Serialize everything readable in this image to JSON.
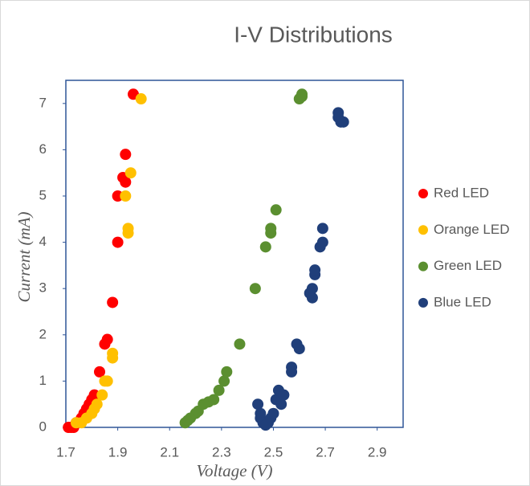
{
  "chart_data": {
    "type": "scatter",
    "title": "I-V Distributions",
    "xlabel": "Voltage (V)",
    "ylabel": "Current (mA)",
    "xlim": [
      1.7,
      3.0
    ],
    "xticks": [
      1.7,
      1.9,
      2.1,
      2.3,
      2.5,
      2.7,
      2.9
    ],
    "ylim": [
      0,
      7.5
    ],
    "yticks": [
      0,
      1,
      2,
      3,
      4,
      5,
      6,
      7
    ],
    "legend": "right",
    "series": [
      {
        "name": "Red LED",
        "color": "#ff0000",
        "x": [
          1.71,
          1.72,
          1.73,
          1.74,
          1.76,
          1.77,
          1.78,
          1.79,
          1.8,
          1.81,
          1.83,
          1.85,
          1.86,
          1.88,
          1.9,
          1.9,
          1.92,
          1.93,
          1.93,
          1.96
        ],
        "values": [
          0,
          0,
          0,
          0.1,
          0.2,
          0.3,
          0.4,
          0.5,
          0.6,
          0.7,
          1.2,
          1.8,
          1.9,
          2.7,
          4.0,
          5.0,
          5.4,
          5.3,
          5.9,
          7.2
        ]
      },
      {
        "name": "Orange LED",
        "color": "#ffc000",
        "x": [
          1.74,
          1.76,
          1.78,
          1.8,
          1.81,
          1.82,
          1.84,
          1.85,
          1.86,
          1.88,
          1.88,
          1.94,
          1.94,
          1.93,
          1.95,
          1.99
        ],
        "values": [
          0.1,
          0.1,
          0.2,
          0.3,
          0.4,
          0.5,
          0.7,
          1.0,
          1.0,
          1.5,
          1.6,
          4.2,
          4.3,
          5.0,
          5.5,
          7.1
        ]
      },
      {
        "name": "Green LED",
        "color": "#5b8f30",
        "x": [
          2.16,
          2.17,
          2.18,
          2.2,
          2.21,
          2.23,
          2.25,
          2.27,
          2.29,
          2.31,
          2.32,
          2.37,
          2.43,
          2.47,
          2.49,
          2.49,
          2.51,
          2.6,
          2.61,
          2.61
        ],
        "values": [
          0.1,
          0.15,
          0.2,
          0.3,
          0.35,
          0.5,
          0.55,
          0.6,
          0.8,
          1.0,
          1.2,
          1.8,
          3.0,
          3.9,
          4.2,
          4.3,
          4.7,
          7.1,
          7.15,
          7.2
        ]
      },
      {
        "name": "Blue LED",
        "color": "#203f7a",
        "x": [
          2.44,
          2.45,
          2.45,
          2.46,
          2.47,
          2.48,
          2.49,
          2.5,
          2.51,
          2.52,
          2.53,
          2.54,
          2.57,
          2.57,
          2.59,
          2.6,
          2.64,
          2.65,
          2.65,
          2.66,
          2.66,
          2.68,
          2.69,
          2.69,
          2.75,
          2.75,
          2.76,
          2.77
        ],
        "values": [
          0.5,
          0.3,
          0.2,
          0.1,
          0.05,
          0.1,
          0.2,
          0.3,
          0.6,
          0.8,
          0.5,
          0.7,
          1.2,
          1.3,
          1.8,
          1.7,
          2.9,
          2.8,
          3.0,
          3.3,
          3.4,
          3.9,
          4.0,
          4.3,
          6.7,
          6.8,
          6.6,
          6.6
        ]
      }
    ]
  }
}
